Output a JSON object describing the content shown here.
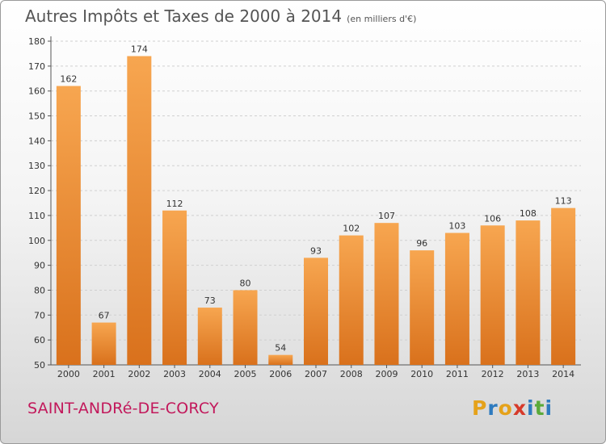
{
  "title": "Autres Impôts et Taxes de 2000 à 2014",
  "subtitle": "(en milliers d'€)",
  "city": "SAINT-ANDRé-DE-CORCY",
  "logo": {
    "letters": [
      "P",
      "r",
      "o",
      "x",
      "i",
      "t",
      "i"
    ],
    "colors": [
      "#e5a21a",
      "#2e7bbf",
      "#e5a21a",
      "#d63a2a",
      "#2e7bbf",
      "#5aaa3a",
      "#2e7bbf"
    ]
  },
  "chart_data": {
    "type": "bar",
    "categories": [
      "2000",
      "2001",
      "2002",
      "2003",
      "2004",
      "2005",
      "2006",
      "2007",
      "2008",
      "2009",
      "2010",
      "2011",
      "2012",
      "2013",
      "2014"
    ],
    "values": [
      162,
      67,
      174,
      112,
      73,
      80,
      54,
      93,
      102,
      107,
      96,
      103,
      106,
      108,
      113
    ],
    "title": "Autres Impôts et Taxes de 2000 à 2014",
    "subtitle": "(en milliers d'€)",
    "xlabel": "",
    "ylabel": "",
    "ylim": [
      50,
      180
    ],
    "yticks": [
      50,
      60,
      70,
      80,
      90,
      100,
      110,
      120,
      130,
      140,
      150,
      160,
      170,
      180
    ],
    "grid": true,
    "legend": "none",
    "bar_color": "#f0913a"
  }
}
